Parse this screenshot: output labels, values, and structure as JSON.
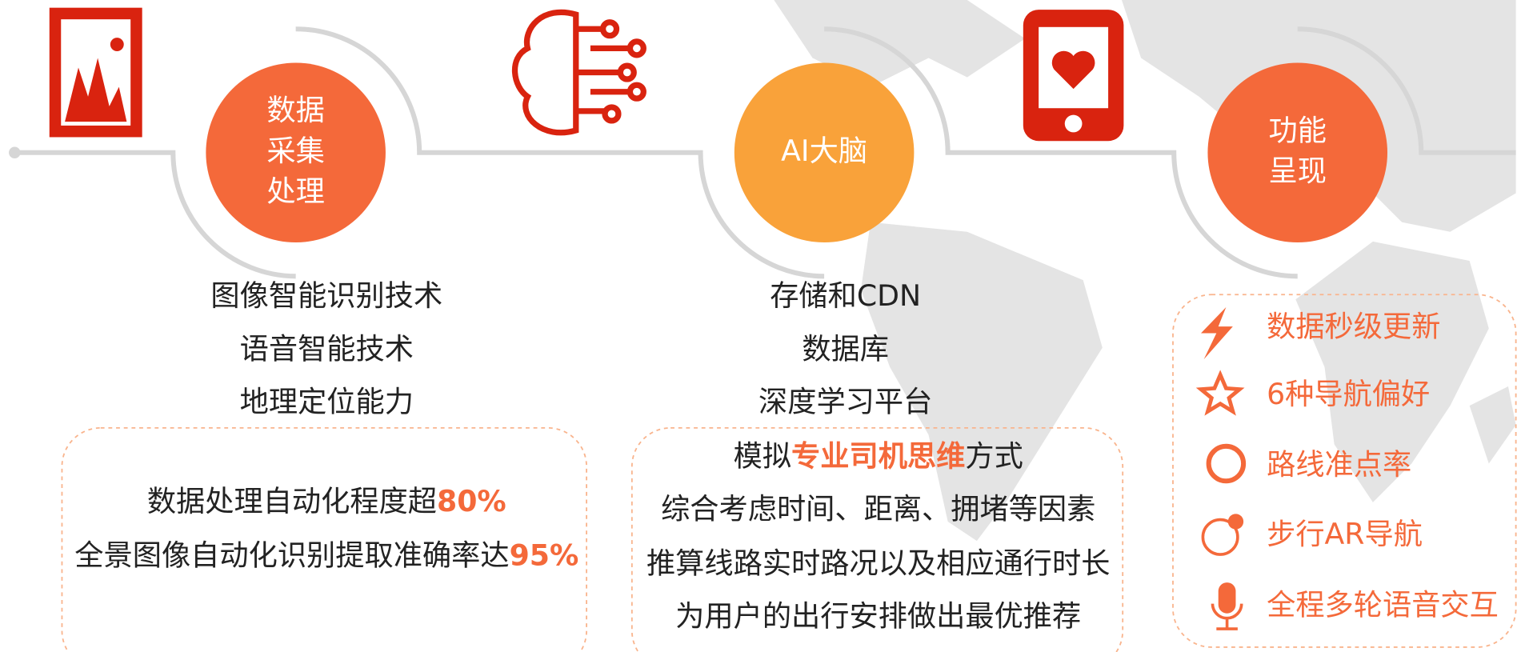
{
  "stages": [
    {
      "label": [
        "数据",
        "采集",
        "处理"
      ],
      "items": [
        "图像智能识别技术",
        "语音智能技术",
        "地理定位能力"
      ],
      "box": [
        [
          {
            "text": "数据处理自动化程度超"
          },
          {
            "text": "80%",
            "em": true
          }
        ],
        [
          {
            "text": "全景图像自动化识别提取准确率达"
          },
          {
            "text": "95%",
            "em": true
          }
        ]
      ]
    },
    {
      "label": [
        "AI大脑"
      ],
      "items": [
        "存储和CDN",
        "数据库",
        "深度学习平台"
      ],
      "box": [
        [
          {
            "text": "模拟"
          },
          {
            "text": "专业司机思维",
            "em": true
          },
          {
            "text": "方式"
          }
        ],
        [
          {
            "text": "综合考虑时间、距离、拥堵等因素"
          }
        ],
        [
          {
            "text": "推算线路实时路况以及相应通行时长"
          }
        ],
        [
          {
            "text": "为用户的出行安排做出最优推荐"
          }
        ]
      ]
    },
    {
      "label": [
        "功能",
        "呈现"
      ],
      "features": [
        "数据秒级更新",
        "6种导航偏好",
        "路线准点率",
        "步行AR导航",
        "全程多轮语音交互"
      ]
    }
  ]
}
